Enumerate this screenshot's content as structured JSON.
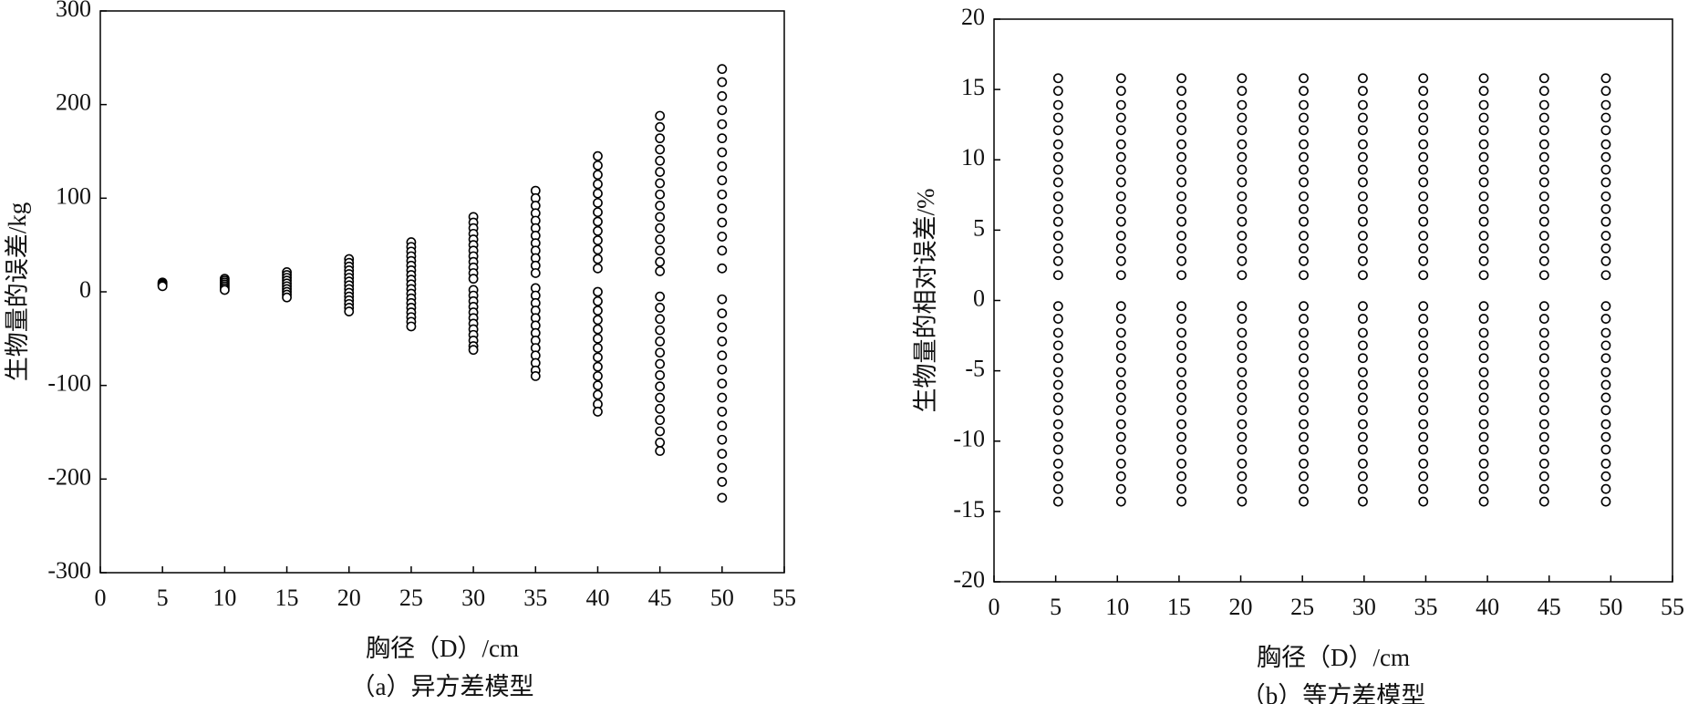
{
  "chart_data": [
    {
      "type": "scatter",
      "xlabel": "胸径（D）/cm",
      "ylabel": "生物量的误差/kg",
      "caption": "（a）异方差模型",
      "xlim": [
        0,
        55
      ],
      "ylim": [
        -300,
        300
      ],
      "xticks": [
        0,
        5,
        10,
        15,
        20,
        25,
        30,
        35,
        40,
        45,
        50,
        55
      ],
      "yticks": [
        -300,
        -200,
        -100,
        0,
        100,
        200,
        300
      ],
      "color": "#000000",
      "series": [
        {
          "x": 5,
          "values": [
            10,
            9,
            8,
            7,
            6
          ]
        },
        {
          "x": 10,
          "values": [
            14,
            12,
            10,
            8,
            6,
            4,
            2
          ]
        },
        {
          "x": 15,
          "values": [
            21,
            18,
            15,
            12,
            9,
            6,
            3,
            0,
            -3,
            -6
          ]
        },
        {
          "x": 20,
          "values": [
            35,
            31,
            27,
            23,
            19,
            15,
            11,
            7,
            3,
            -1,
            -5,
            -9,
            -13,
            -17,
            -21
          ]
        },
        {
          "x": 25,
          "values": [
            53,
            48,
            43,
            38,
            33,
            28,
            23,
            18,
            13,
            8,
            3,
            -2,
            -7,
            -12,
            -17,
            -22,
            -27,
            -32,
            -37
          ]
        },
        {
          "x": 30,
          "values": [
            80,
            74,
            68,
            62,
            56,
            50,
            44,
            38,
            32,
            26,
            20,
            14,
            2,
            -4,
            -10,
            -16,
            -22,
            -28,
            -34,
            -40,
            -46,
            -52,
            -58,
            -62
          ]
        },
        {
          "x": 35,
          "values": [
            108,
            100,
            92,
            84,
            76,
            68,
            60,
            52,
            44,
            36,
            28,
            20,
            4,
            -4,
            -12,
            -20,
            -28,
            -36,
            -44,
            -52,
            -60,
            -68,
            -76,
            -84,
            -90
          ]
        },
        {
          "x": 40,
          "values": [
            145,
            135,
            125,
            115,
            105,
            95,
            85,
            75,
            65,
            55,
            45,
            35,
            25,
            0,
            -10,
            -20,
            -30,
            -40,
            -50,
            -60,
            -70,
            -80,
            -90,
            -100,
            -110,
            -120,
            -128
          ]
        },
        {
          "x": 45,
          "values": [
            188,
            176,
            164,
            152,
            140,
            128,
            116,
            104,
            92,
            80,
            68,
            56,
            44,
            32,
            22,
            -5,
            -17,
            -29,
            -41,
            -53,
            -65,
            -77,
            -89,
            -101,
            -113,
            -125,
            -137,
            -149,
            -161,
            -170
          ]
        },
        {
          "x": 50,
          "values": [
            238,
            224,
            209,
            194,
            179,
            164,
            149,
            134,
            119,
            104,
            89,
            74,
            59,
            44,
            25,
            -8,
            -23,
            -38,
            -53,
            -68,
            -83,
            -98,
            -113,
            -128,
            -143,
            -158,
            -173,
            -188,
            -203,
            -220
          ]
        }
      ]
    },
    {
      "type": "scatter",
      "xlabel": "胸径（D）/cm",
      "ylabel": "生物量的相对误差/%",
      "caption": "（b）等方差模型",
      "xlim": [
        0,
        55
      ],
      "ylim": [
        -20,
        20
      ],
      "xticks": [
        0,
        5,
        10,
        15,
        20,
        25,
        30,
        35,
        40,
        45,
        50,
        55
      ],
      "yticks": [
        -20,
        -15,
        -10,
        -5,
        0,
        5,
        10,
        15,
        20
      ],
      "color": "#000000",
      "series": [
        {
          "x": 5.2,
          "values": [
            15.8,
            14.9,
            13.9,
            13.0,
            12.1,
            11.1,
            10.2,
            9.3,
            8.4,
            7.4,
            6.5,
            5.6,
            4.6,
            3.7,
            2.8,
            1.8,
            -0.4,
            -1.3,
            -2.3,
            -3.2,
            -4.1,
            -5.1,
            -6.0,
            -6.9,
            -7.8,
            -8.8,
            -9.7,
            -10.6,
            -11.6,
            -12.5,
            -13.4,
            -14.3
          ]
        },
        {
          "x": 10.3,
          "values": [
            15.8,
            14.9,
            13.9,
            13.0,
            12.1,
            11.1,
            10.2,
            9.3,
            8.4,
            7.4,
            6.5,
            5.6,
            4.6,
            3.7,
            2.8,
            1.8,
            -0.4,
            -1.3,
            -2.3,
            -3.2,
            -4.1,
            -5.1,
            -6.0,
            -6.9,
            -7.8,
            -8.8,
            -9.7,
            -10.6,
            -11.6,
            -12.5,
            -13.4,
            -14.3
          ]
        },
        {
          "x": 15.2,
          "values": [
            15.8,
            14.9,
            13.9,
            13.0,
            12.1,
            11.1,
            10.2,
            9.3,
            8.4,
            7.4,
            6.5,
            5.6,
            4.6,
            3.7,
            2.8,
            1.8,
            -0.4,
            -1.3,
            -2.3,
            -3.2,
            -4.1,
            -5.1,
            -6.0,
            -6.9,
            -7.8,
            -8.8,
            -9.7,
            -10.6,
            -11.6,
            -12.5,
            -13.4,
            -14.3
          ]
        },
        {
          "x": 20.1,
          "values": [
            15.8,
            14.9,
            13.9,
            13.0,
            12.1,
            11.1,
            10.2,
            9.3,
            8.4,
            7.4,
            6.5,
            5.6,
            4.6,
            3.7,
            2.8,
            1.8,
            -0.4,
            -1.3,
            -2.3,
            -3.2,
            -4.1,
            -5.1,
            -6.0,
            -6.9,
            -7.8,
            -8.8,
            -9.7,
            -10.6,
            -11.6,
            -12.5,
            -13.4,
            -14.3
          ]
        },
        {
          "x": 25.1,
          "values": [
            15.8,
            14.9,
            13.9,
            13.0,
            12.1,
            11.1,
            10.2,
            9.3,
            8.4,
            7.4,
            6.5,
            5.6,
            4.6,
            3.7,
            2.8,
            1.8,
            -0.4,
            -1.3,
            -2.3,
            -3.2,
            -4.1,
            -5.1,
            -6.0,
            -6.9,
            -7.8,
            -8.8,
            -9.7,
            -10.6,
            -11.6,
            -12.5,
            -13.4,
            -14.3
          ]
        },
        {
          "x": 29.9,
          "values": [
            15.8,
            14.9,
            13.9,
            13.0,
            12.1,
            11.1,
            10.2,
            9.3,
            8.4,
            7.4,
            6.5,
            5.6,
            4.6,
            3.7,
            2.8,
            1.8,
            -0.4,
            -1.3,
            -2.3,
            -3.2,
            -4.1,
            -5.1,
            -6.0,
            -6.9,
            -7.8,
            -8.8,
            -9.7,
            -10.6,
            -11.6,
            -12.5,
            -13.4,
            -14.3
          ]
        },
        {
          "x": 34.8,
          "values": [
            15.8,
            14.9,
            13.9,
            13.0,
            12.1,
            11.1,
            10.2,
            9.3,
            8.4,
            7.4,
            6.5,
            5.6,
            4.6,
            3.7,
            2.8,
            1.8,
            -0.4,
            -1.3,
            -2.3,
            -3.2,
            -4.1,
            -5.1,
            -6.0,
            -6.9,
            -7.8,
            -8.8,
            -9.7,
            -10.6,
            -11.6,
            -12.5,
            -13.4,
            -14.3
          ]
        },
        {
          "x": 39.7,
          "values": [
            15.8,
            14.9,
            13.9,
            13.0,
            12.1,
            11.1,
            10.2,
            9.3,
            8.4,
            7.4,
            6.5,
            5.6,
            4.6,
            3.7,
            2.8,
            1.8,
            -0.4,
            -1.3,
            -2.3,
            -3.2,
            -4.1,
            -5.1,
            -6.0,
            -6.9,
            -7.8,
            -8.8,
            -9.7,
            -10.6,
            -11.6,
            -12.5,
            -13.4,
            -14.3
          ]
        },
        {
          "x": 44.6,
          "values": [
            15.8,
            14.9,
            13.9,
            13.0,
            12.1,
            11.1,
            10.2,
            9.3,
            8.4,
            7.4,
            6.5,
            5.6,
            4.6,
            3.7,
            2.8,
            1.8,
            -0.4,
            -1.3,
            -2.3,
            -3.2,
            -4.1,
            -5.1,
            -6.0,
            -6.9,
            -7.8,
            -8.8,
            -9.7,
            -10.6,
            -11.6,
            -12.5,
            -13.4,
            -14.3
          ]
        },
        {
          "x": 49.6,
          "values": [
            15.8,
            14.9,
            13.9,
            13.0,
            12.1,
            11.1,
            10.2,
            9.3,
            8.4,
            7.4,
            6.5,
            5.6,
            4.6,
            3.7,
            2.8,
            1.8,
            -0.4,
            -1.3,
            -2.3,
            -3.2,
            -4.1,
            -5.1,
            -6.0,
            -6.9,
            -7.8,
            -8.8,
            -9.7,
            -10.6,
            -11.6,
            -12.5,
            -13.4,
            -14.3
          ]
        }
      ]
    }
  ]
}
